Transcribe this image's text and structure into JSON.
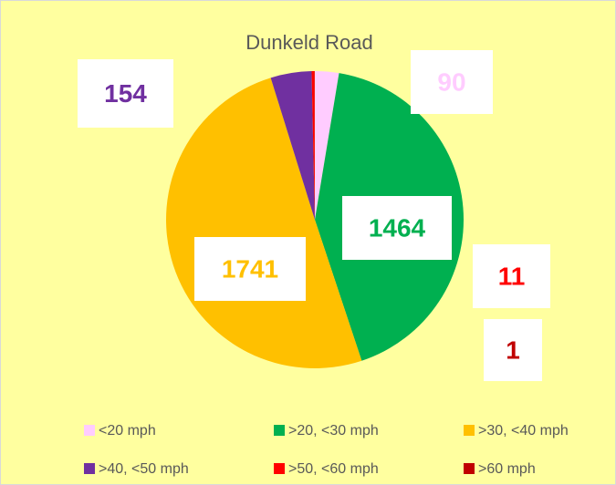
{
  "chart_data": {
    "type": "pie",
    "title": "Dunkeld Road",
    "categories": [
      "<20 mph",
      ">20, <30 mph",
      ">30, <40 mph",
      ">40, <50 mph",
      ">50, <60 mph",
      ">60 mph"
    ],
    "values": [
      90,
      1464,
      1741,
      154,
      11,
      1
    ],
    "colors": [
      "#ffccff",
      "#00b050",
      "#ffc000",
      "#7030a0",
      "#ff0000",
      "#c00000"
    ],
    "legend": "bottom"
  }
}
